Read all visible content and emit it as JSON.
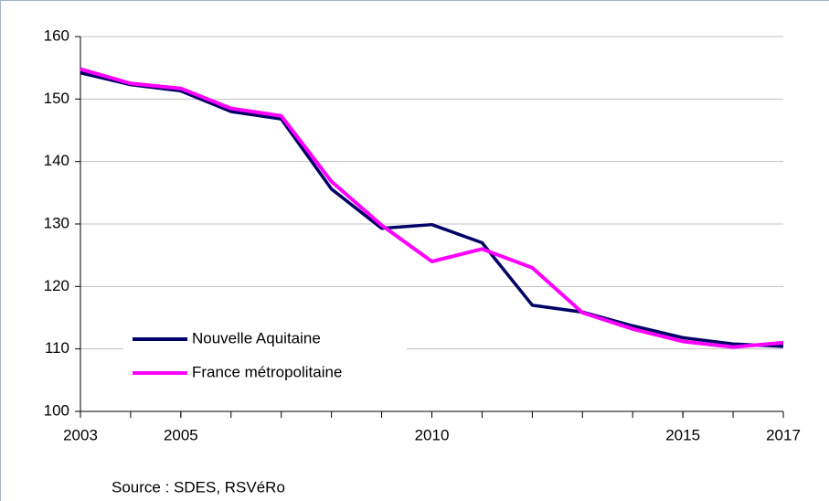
{
  "chart_data": {
    "type": "line",
    "x": [
      2003,
      2004,
      2005,
      2006,
      2007,
      2008,
      2009,
      2010,
      2011,
      2012,
      2013,
      2014,
      2015,
      2016,
      2017
    ],
    "series": [
      {
        "name": "Nouvelle Aquitaine",
        "color": "#000066",
        "values": [
          154.2,
          152.3,
          151.3,
          148.0,
          146.8,
          135.6,
          129.3,
          129.9,
          127.0,
          117.0,
          115.9,
          113.7,
          111.8,
          110.8,
          110.4
        ]
      },
      {
        "name": "France métropolitaine",
        "color": "#ff00ff",
        "values": [
          154.8,
          152.5,
          151.7,
          148.5,
          147.3,
          136.8,
          129.8,
          124.0,
          126.0,
          123.0,
          115.8,
          113.2,
          111.2,
          110.3,
          111.0
        ]
      }
    ],
    "xlim": [
      2003,
      2017
    ],
    "xticks": [
      2003,
      2005,
      2010,
      2015,
      2017
    ],
    "ylim": [
      100,
      160
    ],
    "yticks": [
      100,
      110,
      120,
      130,
      140,
      150,
      160
    ],
    "grid": true,
    "legend": "lower left",
    "source": "Source : SDES, RSVéRo"
  }
}
